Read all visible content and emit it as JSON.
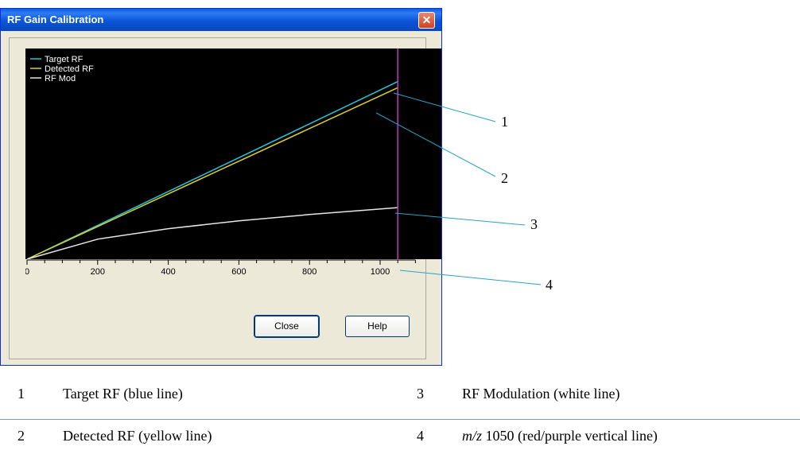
{
  "window": {
    "title": "RF Gain Calibration",
    "close_glyph": "✕"
  },
  "chart_data": {
    "type": "line",
    "x_ticks": [
      "0",
      "200",
      "400",
      "600",
      "800",
      "1000"
    ],
    "xlim": [
      0,
      1100
    ],
    "legend": [
      "Target RF",
      "Detected RF",
      "RF Mod"
    ],
    "legend_position": "top-left",
    "series": [
      {
        "name": "Target RF",
        "color": "#22c7d8",
        "x": [
          0,
          1050
        ],
        "y": [
          0,
          0.843
        ]
      },
      {
        "name": "Detected RF",
        "color": "#dcd12c",
        "x": [
          0,
          1050
        ],
        "y": [
          0,
          0.814
        ]
      },
      {
        "name": "RF Mod",
        "color": "#e6e6e6",
        "x": [
          0,
          200,
          400,
          600,
          800,
          1050
        ],
        "y": [
          0,
          0.095,
          0.145,
          0.182,
          0.212,
          0.245
        ]
      }
    ],
    "marker_x": 1050,
    "marker_color": "#c832c8"
  },
  "buttons": {
    "close": "Close",
    "help": "Help"
  },
  "callouts": [
    "1",
    "2",
    "3",
    "4"
  ],
  "legend_table": {
    "rows": [
      {
        "left_num": "1",
        "left_text": "Target RF (blue line)",
        "right_num": "3",
        "right_text": "RF Modulation (white line)"
      },
      {
        "left_num": "2",
        "left_text": "Detected RF (yellow line)",
        "right_num": "4",
        "right_text_italic": "m/z",
        "right_text": " 1050 (red/purple vertical line)"
      }
    ]
  }
}
